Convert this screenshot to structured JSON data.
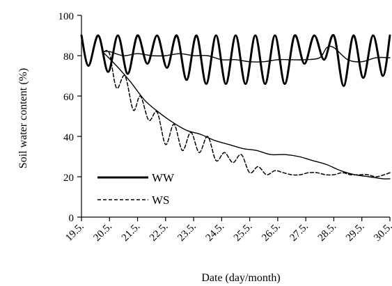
{
  "chart_data": {
    "type": "line",
    "title": "",
    "xlabel": "Date (day/month)",
    "ylabel": "Soil water content (%)",
    "ylim": [
      0,
      100
    ],
    "yticks": [
      0,
      20,
      40,
      60,
      80,
      100
    ],
    "xticks": [
      "19.5.",
      "20.5.",
      "21.5.",
      "22.5.",
      "23.5.",
      "24.5.",
      "25.5.",
      "26.5.",
      "27.5.",
      "28.5.",
      "29.5.",
      "30.5."
    ],
    "grid": false,
    "legend_placement": "bottom-left",
    "series": [
      {
        "name": "WW",
        "style": "solid",
        "x": [
          0.0,
          0.25,
          0.6,
          0.95,
          1.3,
          1.65,
          2.0,
          2.35,
          2.7,
          3.05,
          3.4,
          3.75,
          4.1,
          4.45,
          4.8,
          5.15,
          5.5,
          5.85,
          6.2,
          6.55,
          6.9,
          7.25,
          7.6,
          7.95,
          8.3,
          8.65,
          9.0,
          9.35,
          9.7,
          10.05,
          10.4,
          10.75,
          11.0
        ],
        "y": [
          90,
          75,
          90,
          72,
          90,
          71,
          90,
          76,
          90,
          74,
          90,
          68,
          90,
          66,
          90,
          66,
          90,
          66,
          90,
          66,
          90,
          66,
          90,
          76,
          90,
          78,
          90,
          65,
          90,
          69,
          90,
          70,
          90
        ]
      },
      {
        "name": "",
        "style": "thin-solid",
        "x": [
          0.75,
          1.0,
          1.5,
          2.0,
          2.5,
          3.0,
          3.5,
          4.0,
          4.5,
          5.0,
          5.5,
          6.0,
          6.5,
          7.0,
          7.5,
          8.0,
          8.5,
          8.75,
          9.0,
          9.5,
          10.0,
          10.5,
          11.0
        ],
        "y": [
          82,
          82,
          80,
          81,
          80,
          80,
          81,
          80,
          80,
          78,
          78,
          77,
          77,
          78,
          78,
          78,
          79,
          84,
          84,
          78,
          77,
          79,
          79
        ]
      },
      {
        "name": "WS",
        "style": "dashed",
        "x": [
          0.8,
          1.0,
          1.25,
          1.55,
          1.85,
          2.1,
          2.4,
          2.7,
          3.0,
          3.3,
          3.6,
          3.9,
          4.2,
          4.5,
          4.8,
          5.1,
          5.4,
          5.7,
          6.0,
          6.3,
          6.6,
          6.9,
          7.2,
          7.5,
          7.8,
          8.1,
          8.4,
          8.7,
          9.0,
          9.3,
          9.6,
          9.9,
          10.2,
          10.5,
          10.8,
          11.0
        ],
        "y": [
          82,
          81,
          64,
          70,
          53,
          60,
          48,
          52,
          36,
          46,
          33,
          42,
          32,
          40,
          28,
          32,
          27,
          31,
          22,
          25,
          21,
          23,
          22,
          21,
          21,
          22,
          22,
          21,
          21,
          22,
          21,
          21,
          21,
          20,
          21,
          22
        ]
      },
      {
        "name": "",
        "style": "thin-solid",
        "x": [
          0.75,
          1.25,
          1.75,
          2.25,
          2.75,
          3.25,
          3.75,
          4.25,
          4.75,
          5.25,
          5.75,
          6.25,
          6.75,
          7.25,
          7.75,
          8.25,
          8.75,
          9.25,
          9.75,
          10.25,
          10.75,
          11.0
        ],
        "y": [
          82,
          75,
          67,
          58,
          52,
          47,
          43,
          41,
          38,
          36,
          34,
          33,
          31,
          31,
          30,
          28,
          26,
          23,
          21,
          20,
          19,
          19
        ]
      }
    ],
    "legend": [
      {
        "label": "WW",
        "style": "solid"
      },
      {
        "label": "WS",
        "style": "dashed"
      }
    ]
  }
}
